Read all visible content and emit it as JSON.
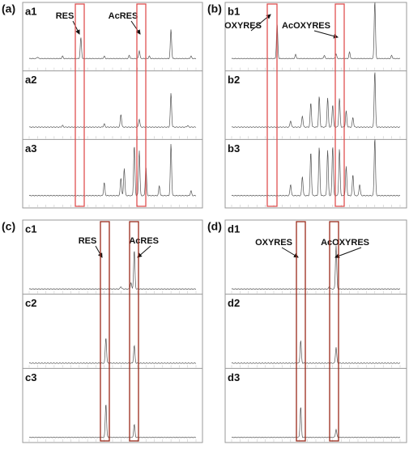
{
  "panels": [
    {
      "label": "(a)",
      "subpanels": [
        {
          "label": "a1",
          "annotations": [
            "RES",
            "AcRES"
          ]
        },
        {
          "label": "a2"
        },
        {
          "label": "a3"
        }
      ]
    },
    {
      "label": "(b)",
      "subpanels": [
        {
          "label": "b1",
          "annotations": [
            "OXYRES",
            "AcOXYRES"
          ]
        },
        {
          "label": "b2"
        },
        {
          "label": "b3"
        }
      ]
    },
    {
      "label": "(c)",
      "subpanels": [
        {
          "label": "c1",
          "annotations": [
            "RES",
            "AcRES"
          ]
        },
        {
          "label": "c2"
        },
        {
          "label": "c3"
        }
      ]
    },
    {
      "label": "(d)",
      "subpanels": [
        {
          "label": "d1",
          "annotations": [
            "OXYRES",
            "AcOXYRES"
          ]
        },
        {
          "label": "d2"
        },
        {
          "label": "d3"
        }
      ]
    }
  ]
}
